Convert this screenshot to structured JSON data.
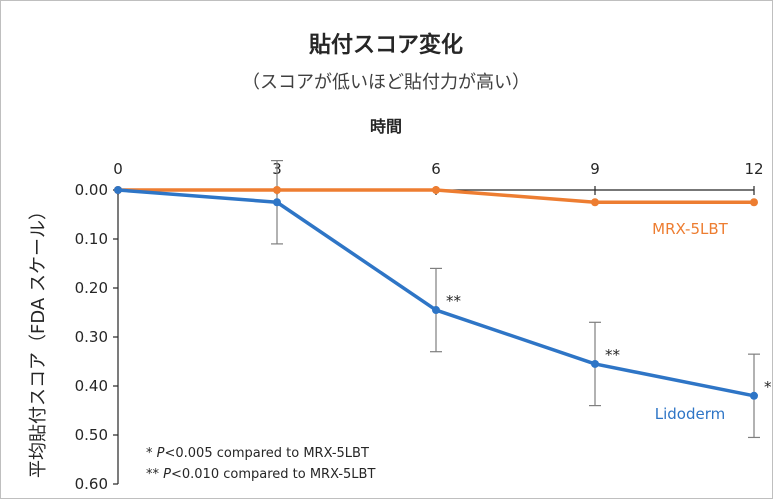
{
  "chart_data": {
    "type": "line",
    "title": "貼付スコア変化",
    "subtitle": "（スコアが低いほど貼付力が高い）",
    "xlabel": "時間",
    "ylabel": "平均貼付スコア（FDA スケール）",
    "x": [
      0,
      3,
      6,
      9,
      12
    ],
    "xlim": [
      0,
      12
    ],
    "ylim": [
      0.0,
      0.6
    ],
    "y_inverted": true,
    "x_axis_position": "top",
    "yticks": [
      "0.00",
      "0.10",
      "0.20",
      "0.30",
      "0.40",
      "0.50",
      "0.60"
    ],
    "xticks": [
      "0",
      "3",
      "6",
      "9",
      "12"
    ],
    "grid": false,
    "series": [
      {
        "name": "MRX-5LBT",
        "color": "#ED7D31",
        "values": [
          0.0,
          0.0,
          0.0,
          0.025,
          0.025
        ]
      },
      {
        "name": "Lidoderm",
        "color": "#2E75C6",
        "values": [
          0.0,
          0.025,
          0.245,
          0.355,
          0.42
        ],
        "error": [
          null,
          0.085,
          0.085,
          0.085,
          0.085
        ],
        "significance": [
          "",
          "",
          "**",
          "**",
          "*"
        ]
      }
    ],
    "footnotes": [
      {
        "marker": "*",
        "p": "P",
        "text": "<0.005 compared to MRX-5LBT"
      },
      {
        "marker": "**",
        "p": "P",
        "text": "<0.010 compared to MRX-5LBT"
      }
    ]
  }
}
